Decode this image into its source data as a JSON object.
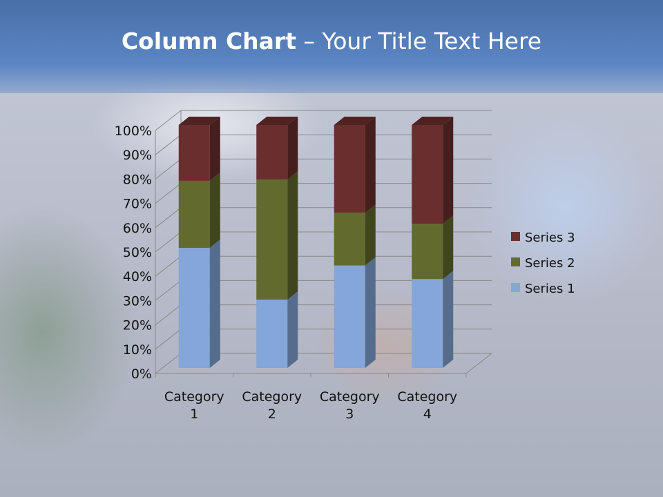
{
  "title": {
    "bold": "Column Chart",
    "rest": " – Your Title Text Here"
  },
  "chart_data": {
    "type": "bar",
    "stacking": "percent",
    "three_d": true,
    "categories": [
      "Category 1",
      "Category 2",
      "Category 3",
      "Category 4"
    ],
    "series": [
      {
        "name": "Series 1",
        "values": [
          4.3,
          2.5,
          3.5,
          4.5
        ],
        "color": "#84a6d8"
      },
      {
        "name": "Series 2",
        "values": [
          2.4,
          4.4,
          1.8,
          2.8
        ],
        "color": "#636a2e"
      },
      {
        "name": "Series 3",
        "values": [
          2,
          2,
          3,
          5
        ],
        "color": "#6a2e2e"
      }
    ],
    "y_ticks": [
      "0%",
      "10%",
      "20%",
      "30%",
      "40%",
      "50%",
      "60%",
      "70%",
      "80%",
      "90%",
      "100%"
    ],
    "ylim": [
      0,
      100
    ],
    "grid": true,
    "legend": "right"
  }
}
